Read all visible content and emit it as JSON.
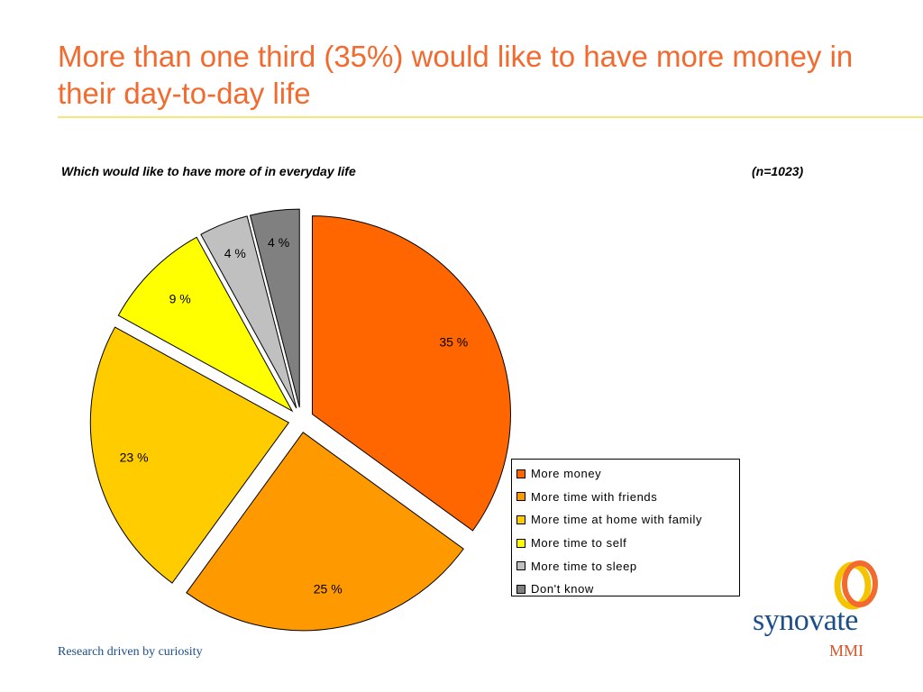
{
  "slide": {
    "title": "More than one third (35%) would like to have more money in their day-to-day life",
    "tagline": "Research driven by curiosity"
  },
  "logo": {
    "word": "synovate",
    "sub": "MMI",
    "icon": "double-ring-logo-icon"
  },
  "chart_data": {
    "type": "pie",
    "title": "Which would like to have more of in everyday life",
    "sample_note": "(n=1023)",
    "categories": [
      "More money",
      "More time with friends",
      "More time at home with family",
      "More time to self",
      "More time to sleep",
      "Don't know"
    ],
    "values": [
      35,
      25,
      23,
      9,
      4,
      4
    ],
    "data_labels": [
      "35 %",
      "25 %",
      "23 %",
      "9 %",
      "4 %",
      "4 %"
    ],
    "colors": [
      "#ff6600",
      "#ff9900",
      "#ffcc00",
      "#ffff00",
      "#c0c0c0",
      "#808080"
    ],
    "exploded": true,
    "legend_position": "bottom-right"
  }
}
